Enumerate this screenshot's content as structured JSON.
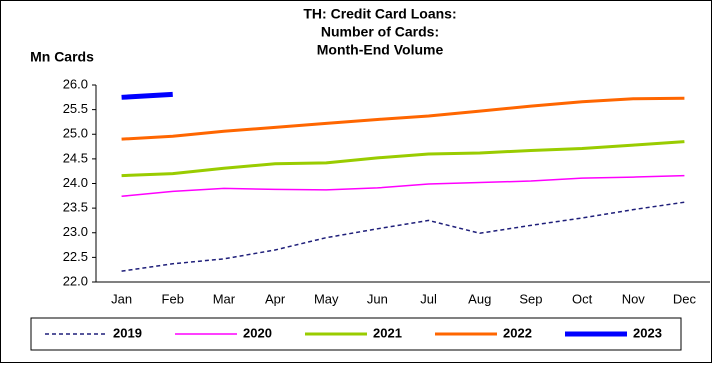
{
  "chart_data": {
    "type": "line",
    "title": [
      "TH: Credit Card Loans:",
      "Number of Cards:",
      "Month-End Volume"
    ],
    "y_label": "Mn Cards",
    "categories": [
      "Jan",
      "Feb",
      "Mar",
      "Apr",
      "May",
      "Jun",
      "Jul",
      "Aug",
      "Sep",
      "Oct",
      "Nov",
      "Dec"
    ],
    "series": [
      {
        "name": "2019",
        "color": "#1f1f7a",
        "width": 1.5,
        "line_style": "dashed",
        "values": [
          22.22,
          22.37,
          22.47,
          22.65,
          22.9,
          23.08,
          23.25,
          22.99,
          23.15,
          23.3,
          23.47,
          23.62
        ]
      },
      {
        "name": "2020",
        "color": "#ff00ff",
        "width": 1.5,
        "line_style": "solid",
        "values": [
          23.74,
          23.84,
          23.9,
          23.88,
          23.87,
          23.91,
          23.99,
          24.02,
          24.05,
          24.11,
          24.13,
          24.16
        ]
      },
      {
        "name": "2021",
        "color": "#99cc00",
        "width": 3,
        "line_style": "solid",
        "values": [
          24.16,
          24.2,
          24.31,
          24.4,
          24.42,
          24.52,
          24.6,
          24.62,
          24.67,
          24.71,
          24.78,
          24.85
        ]
      },
      {
        "name": "2022",
        "color": "#ff6600",
        "width": 3,
        "line_style": "solid",
        "values": [
          24.9,
          24.96,
          25.06,
          25.14,
          25.22,
          25.3,
          25.37,
          25.47,
          25.57,
          25.66,
          25.72,
          25.73
        ]
      },
      {
        "name": "2023",
        "color": "#0000ff",
        "width": 5,
        "line_style": "solid",
        "values": [
          25.75,
          25.81,
          null,
          null,
          null,
          null,
          null,
          null,
          null,
          null,
          null,
          null
        ]
      }
    ],
    "ylim": [
      22,
      26
    ],
    "yticks": [
      {
        "value": 22,
        "label": "22.0"
      },
      {
        "value": 22.5,
        "label": "22.5"
      },
      {
        "value": 23,
        "label": "23.0"
      },
      {
        "value": 23.5,
        "label": "23.5"
      },
      {
        "value": 24,
        "label": "24.0"
      },
      {
        "value": 24.5,
        "label": "24.5"
      },
      {
        "value": 25,
        "label": "25.0"
      },
      {
        "value": 25.5,
        "label": "25.5"
      },
      {
        "value": 26,
        "label": "26.0"
      }
    ],
    "grid": false,
    "legend": "bottom"
  }
}
